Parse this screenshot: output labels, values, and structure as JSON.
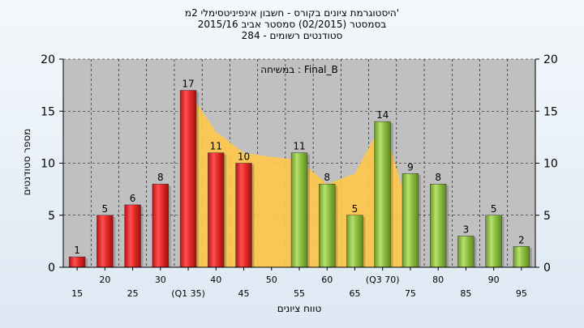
{
  "titles": [
    "היסטוגרמת ציונים בקורס - חשבון אינפיניטסימלי 2מ'",
    "בסמסטר  (02/2015)  סמסטר אביב 2015/16",
    "סטודנטים רשומים - 284"
  ],
  "chart_data": {
    "type": "bar",
    "categories": [
      "15",
      "20",
      "25",
      "30",
      "(Q1 35)",
      "40",
      "45",
      "50",
      "55",
      "60",
      "65",
      "(Q3 70)",
      "75",
      "80",
      "85",
      "90",
      "95"
    ],
    "values": [
      1,
      5,
      6,
      8,
      17,
      11,
      10,
      null,
      11,
      8,
      5,
      14,
      9,
      8,
      3,
      5,
      2
    ],
    "bar_colors": [
      "red",
      "red",
      "red",
      "red",
      "red",
      "red",
      "red",
      null,
      "green",
      "green",
      "green",
      "green",
      "green",
      "green",
      "green",
      "green",
      "green"
    ],
    "area_values": [
      null,
      null,
      null,
      null,
      17,
      13,
      11,
      10.6,
      10.3,
      8,
      9,
      14,
      5,
      null,
      null,
      null,
      null
    ],
    "ylim": [
      0,
      20
    ],
    "yticks": [
      0,
      5,
      10,
      15,
      20
    ],
    "ylabel": "מספר סטודנטים",
    "xlabel": "טווח ציונים",
    "annotation": "במשיחה : Final_B",
    "grid": true,
    "colors": {
      "red": "#e82a2a",
      "green": "#8cc040",
      "area": "#ffc84a",
      "plot_bg": "#c0c0c0",
      "grid": "#000000"
    }
  }
}
